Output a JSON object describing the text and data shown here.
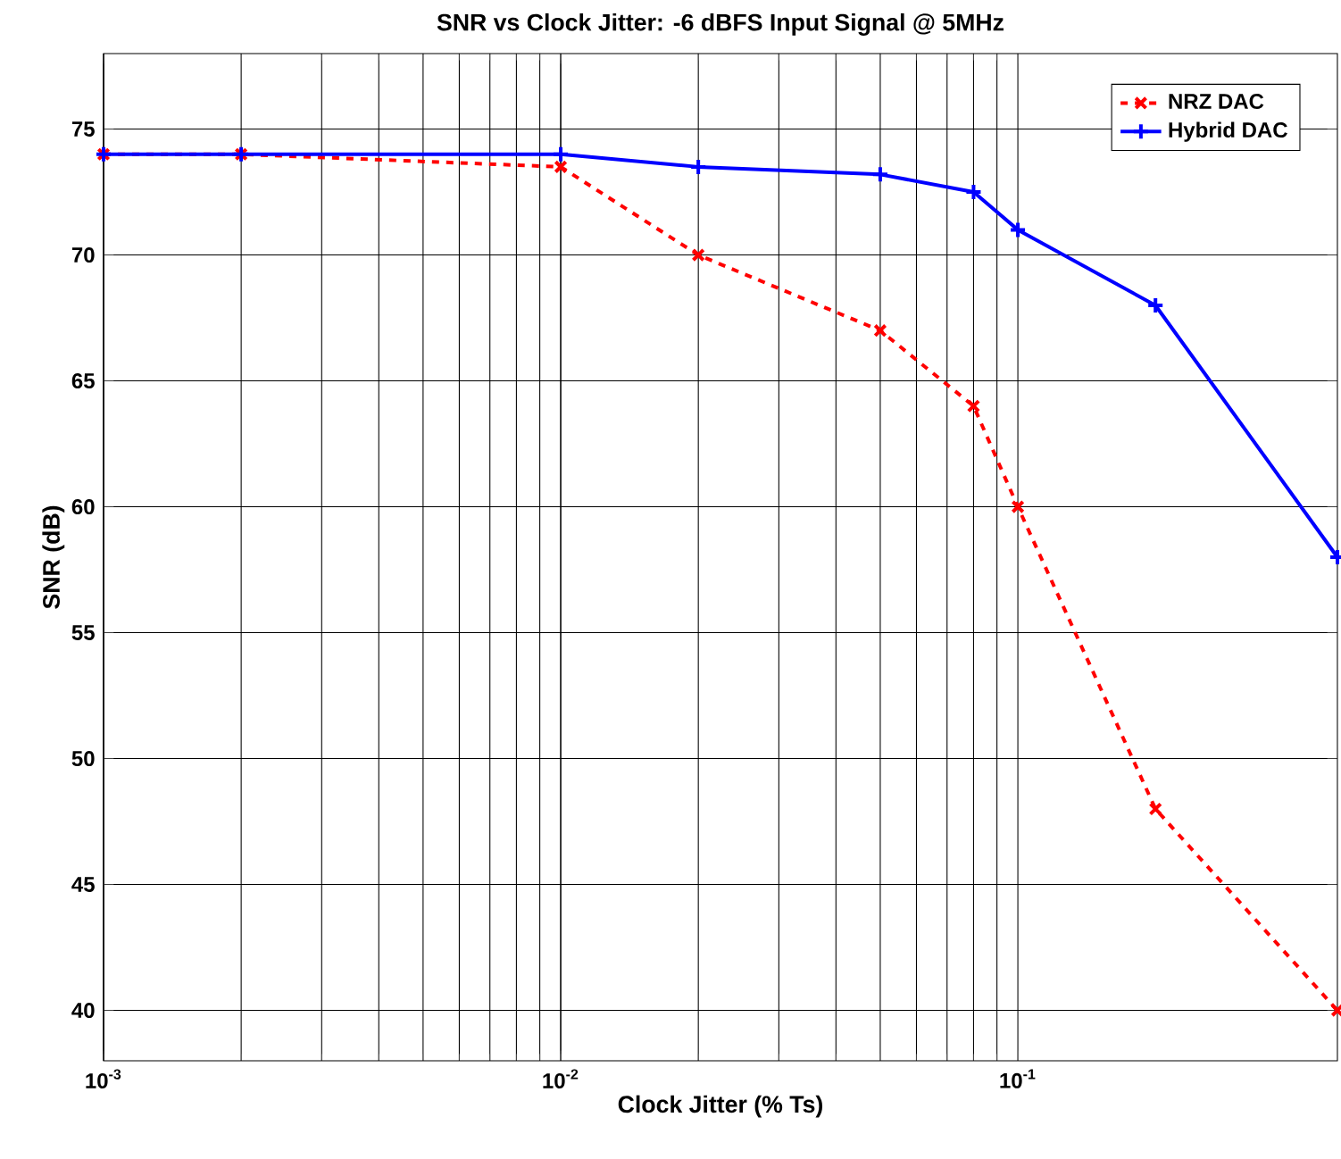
{
  "chart_data": {
    "type": "line",
    "title": "SNR vs Clock Jitter: -6 dBFS Input Signal @ 5MHz",
    "xlabel": "Clock Jitter (% Ts)",
    "ylabel": "SNR (dB)",
    "log": "x",
    "grid": true,
    "legend": "top right",
    "xlim": [
      0.001,
      0.5
    ],
    "ylim": [
      38,
      78
    ],
    "xticks": [
      {
        "value": 0.001,
        "label": "10$^{-3}$"
      },
      {
        "value": 0.01,
        "label": "10$^{-2}$"
      },
      {
        "value": 0.1,
        "label": "10$^{-1}$"
      }
    ],
    "yticks": [
      40,
      45,
      50,
      55,
      60,
      65,
      70,
      75
    ],
    "x": [
      0.001,
      0.002,
      0.01,
      0.02,
      0.05,
      0.08,
      0.1,
      0.2,
      0.5
    ],
    "series": [
      {
        "name": "NRZ DAC",
        "color": "#ff0000",
        "marker": "cross",
        "line_style": "dashed",
        "values": [
          74,
          74,
          73.5,
          70,
          67,
          64,
          60,
          48,
          40
        ]
      },
      {
        "name": "Hybrid DAC",
        "color": "#0000ff",
        "marker": "plus",
        "line_style": "solid",
        "values": [
          74,
          74,
          74,
          73.5,
          73.2,
          72.5,
          71,
          68,
          58
        ]
      }
    ]
  }
}
